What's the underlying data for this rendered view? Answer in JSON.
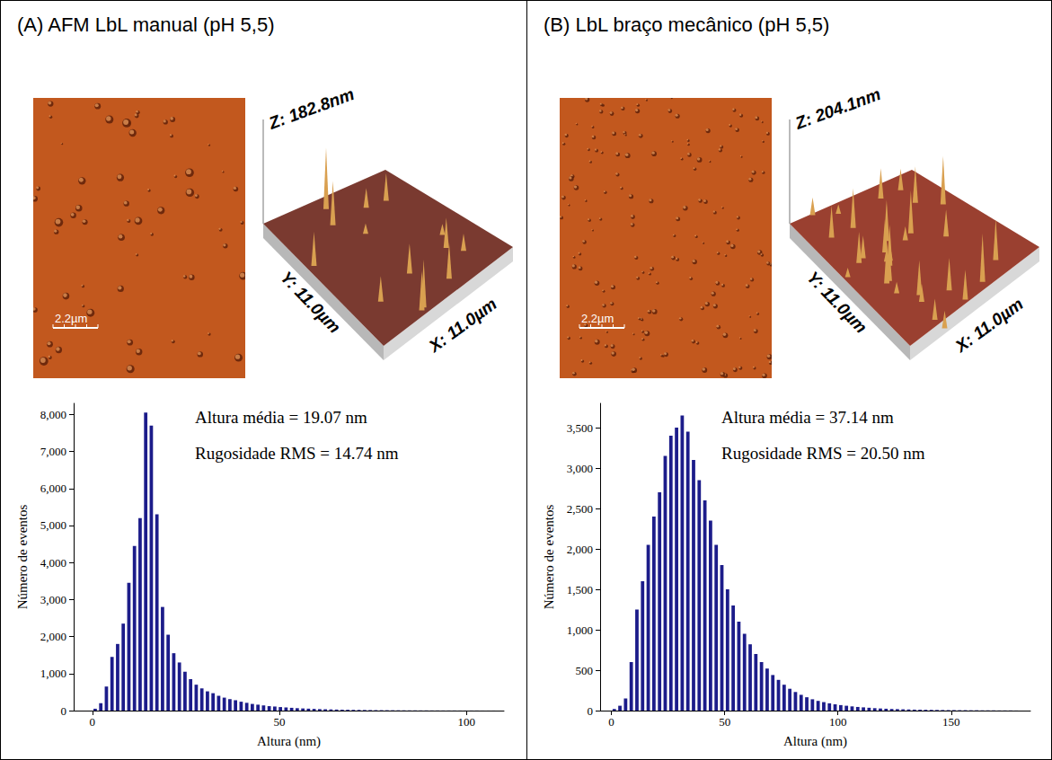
{
  "chart_data": [
    {
      "type": "histogram",
      "title": "(A) AFM LbL manual (pH 5,5)",
      "annotations": [
        "Altura média = 19.07 nm",
        "Rugosidade RMS = 14.74 nm"
      ],
      "x_label": "Altura (nm)",
      "y_label": "Número de eventos",
      "bins": [
        0,
        1.5,
        3,
        4.5,
        6,
        7.5,
        9,
        10.5,
        12,
        13.5,
        15,
        16.5,
        18,
        19.5,
        21,
        22.5,
        24,
        25.5,
        27,
        28.5,
        30,
        31.5,
        33,
        34.5,
        36,
        37.5,
        39,
        40.5,
        42,
        43.5,
        45,
        46.5,
        48,
        49.5,
        51,
        52.5,
        54,
        55.5,
        57,
        58.5,
        60,
        61.5,
        63,
        64.5,
        66,
        67.5,
        69,
        70.5,
        72,
        73.5,
        75,
        76.5,
        78,
        79.5,
        81,
        82.5,
        84,
        85.5,
        87,
        88.5,
        90,
        91.5,
        93,
        94.5,
        96,
        97.5,
        99,
        100.5,
        102,
        103.5,
        105,
        106.5,
        108
      ],
      "values": [
        50,
        200,
        650,
        1450,
        1800,
        2350,
        3450,
        4450,
        5200,
        8050,
        7700,
        5300,
        2800,
        2050,
        1550,
        1300,
        1050,
        850,
        700,
        600,
        520,
        470,
        400,
        350,
        310,
        280,
        240,
        210,
        180,
        160,
        140,
        120,
        110,
        95,
        85,
        75,
        65,
        58,
        52,
        46,
        40,
        36,
        32,
        28,
        25,
        22,
        20,
        18,
        16,
        14,
        12,
        11,
        10,
        9,
        8,
        7,
        6,
        6,
        5,
        5,
        4,
        4,
        3,
        3,
        3,
        2,
        2,
        2,
        2,
        1,
        1,
        1
      ],
      "color": "#1c1c8a",
      "xlim": [
        -5,
        110
      ],
      "xticks": [
        0,
        50,
        100
      ],
      "ylim": [
        0,
        8300
      ],
      "yticks": [
        0,
        1000,
        2000,
        3000,
        4000,
        5000,
        6000,
        7000,
        8000
      ],
      "grid": false
    },
    {
      "type": "histogram",
      "title": "(B) LbL braço mecânico (pH 5,5)",
      "annotations": [
        "Altura média = 37.14 nm",
        "Rugosidade RMS = 20.50 nm"
      ],
      "x_label": "Altura (nm)",
      "y_label": "Número de eventos",
      "bins": [
        0,
        2.5,
        5,
        7.5,
        10,
        12.5,
        15,
        17.5,
        20,
        22.5,
        25,
        27.5,
        30,
        32.5,
        35,
        37.5,
        40,
        42.5,
        45,
        47.5,
        50,
        52.5,
        55,
        57.5,
        60,
        62.5,
        65,
        67.5,
        70,
        72.5,
        75,
        77.5,
        80,
        82.5,
        85,
        87.5,
        90,
        92.5,
        95,
        97.5,
        100,
        102.5,
        105,
        107.5,
        110,
        112.5,
        115,
        117.5,
        120,
        122.5,
        125,
        127.5,
        130,
        132.5,
        135,
        137.5,
        140,
        142.5,
        145,
        147.5,
        150,
        152.5,
        155,
        157.5,
        160,
        162.5,
        165,
        167.5,
        170,
        172.5,
        175,
        177.5,
        180
      ],
      "values": [
        20,
        60,
        150,
        600,
        1250,
        1600,
        2050,
        2400,
        2700,
        3150,
        3400,
        3500,
        3650,
        3450,
        3100,
        2850,
        2600,
        2350,
        2050,
        1800,
        1500,
        1300,
        1100,
        950,
        820,
        700,
        600,
        520,
        440,
        380,
        320,
        270,
        230,
        195,
        165,
        140,
        120,
        105,
        90,
        78,
        68,
        60,
        52,
        45,
        40,
        35,
        30,
        26,
        23,
        20,
        18,
        16,
        14,
        12,
        11,
        10,
        9,
        8,
        7,
        6,
        6,
        5,
        5,
        4,
        4,
        3,
        3,
        3,
        2,
        2,
        2,
        1
      ],
      "color": "#1c1c8a",
      "xlim": [
        -5,
        185
      ],
      "xticks": [
        0,
        50,
        100,
        150
      ],
      "ylim": [
        0,
        3800
      ],
      "yticks": [
        0,
        500,
        1000,
        1500,
        2000,
        2500,
        3000,
        3500
      ],
      "grid": false
    }
  ],
  "afm_images": [
    {
      "scale_bar": "2.2µm",
      "z_label": "Z: 182.8nm",
      "y_label": "Y: 11.0µm",
      "x_label": "X: 11.0µm"
    },
    {
      "scale_bar": "2.2µm",
      "z_label": "Z: 204.1nm",
      "y_label": "Y: 11.0µm",
      "x_label": "X: 11.0µm"
    }
  ]
}
